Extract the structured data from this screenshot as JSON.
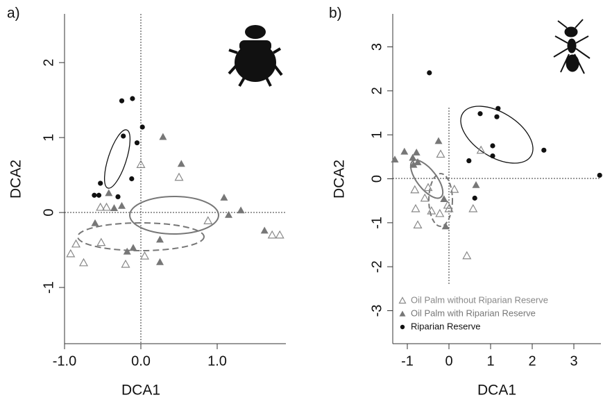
{
  "chart_data": [
    {
      "type": "scatter",
      "panel_label": "a)",
      "xlabel": "DCA1",
      "ylabel": "DCA2",
      "xlim": [
        -1.0,
        1.9
      ],
      "ylim": [
        -1.75,
        2.65
      ],
      "xticks": [
        {
          "value": -1,
          "label": "-1.0"
        },
        {
          "value": 0,
          "label": "0.0"
        },
        {
          "value": 1,
          "label": "1.0"
        }
      ],
      "yticks": [
        -1,
        0,
        1,
        2
      ],
      "series": [
        {
          "color": "#888888",
          "marker": "triangle-open",
          "x": [
            0,
            0.5,
            -0.53,
            -0.45,
            -0.85,
            -0.52,
            -0.92,
            -0.75,
            -0.2,
            0.05,
            0.88,
            1.72,
            1.82
          ],
          "y": [
            0.64,
            0.47,
            0.07,
            0.07,
            -0.42,
            -0.4,
            -0.55,
            -0.67,
            -0.69,
            -0.58,
            -0.11,
            -0.3,
            -0.3
          ]
        },
        {
          "color": "#777777",
          "marker": "triangle",
          "x": [
            0.29,
            0.53,
            -0.42,
            -0.35,
            -0.25,
            -0.6,
            1.09,
            1.15,
            1.31,
            1.62,
            0.25,
            -0.18,
            -0.1,
            0.25
          ],
          "y": [
            1.01,
            0.65,
            0.26,
            0.06,
            0.09,
            -0.14,
            0.2,
            -0.03,
            0.03,
            -0.24,
            -0.36,
            -0.52,
            -0.47,
            -0.66
          ]
        },
        {
          "color": "#111111",
          "marker": "circle",
          "x": [
            -0.25,
            -0.11,
            0.02,
            -0.23,
            -0.05,
            -0.53,
            -0.61,
            -0.55,
            -0.3,
            -0.12
          ],
          "y": [
            1.49,
            1.52,
            1.14,
            1.02,
            0.93,
            0.39,
            0.23,
            0.23,
            0.21,
            0.45
          ]
        }
      ]
    },
    {
      "type": "scatter",
      "panel_label": "b)",
      "xlabel": "DCA1",
      "ylabel": "DCA2",
      "xlim": [
        -1.35,
        3.65
      ],
      "ylim": [
        -3.75,
        3.75
      ],
      "xticks": [
        -1,
        0,
        1,
        2,
        3
      ],
      "yticks": [
        -3,
        -2,
        -1,
        0,
        1,
        2,
        3
      ],
      "legend": "bottom-left",
      "series": [
        {
          "name": "Oil Palm without Riparian Reserve",
          "color": "#888888",
          "marker": "triangle-open",
          "x": [
            0.77,
            -0.2,
            -0.5,
            0.13,
            -0.82,
            -0.58,
            -0.8,
            -0.42,
            -0.22,
            0,
            0.58,
            -0.75,
            0.43,
            -0.03
          ],
          "y": [
            0.65,
            0.56,
            -0.2,
            -0.24,
            -0.25,
            -0.44,
            -0.68,
            -0.73,
            -0.79,
            -0.68,
            -0.68,
            -1.05,
            -1.75,
            -0.6
          ]
        },
        {
          "name": "Oil Palm with Riparian Reserve",
          "color": "#777777",
          "marker": "triangle",
          "x": [
            -1.3,
            -1.07,
            -0.78,
            -0.87,
            -0.85,
            -0.75,
            -0.25,
            0.65,
            -0.12,
            -0.08
          ],
          "y": [
            0.44,
            0.62,
            0.6,
            0.48,
            0.32,
            0.38,
            0.86,
            -0.14,
            -0.46,
            -1.08
          ]
        },
        {
          "name": "Riparian Reserve",
          "color": "#111111",
          "marker": "circle",
          "x": [
            -0.47,
            0.75,
            1.18,
            1.15,
            1.05,
            1.05,
            0.48,
            2.28,
            3.62,
            0.62
          ],
          "y": [
            2.41,
            1.48,
            1.6,
            1.41,
            0.75,
            0.52,
            0.41,
            0.65,
            0.08,
            -0.44
          ]
        }
      ]
    }
  ]
}
